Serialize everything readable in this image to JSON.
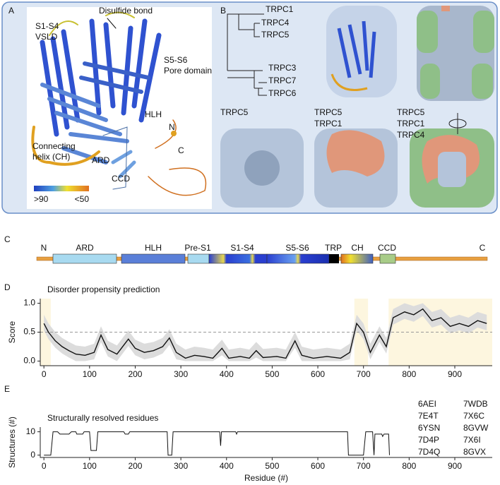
{
  "panels": {
    "A": {
      "label": "A",
      "disulfide": "Disulfide bond",
      "vsld": [
        "S1-S4",
        "VSLD"
      ],
      "pore": [
        "S5-S6",
        "Pore domain"
      ],
      "hlh": "HLH",
      "ch": [
        "Connecting",
        "helix (CH)"
      ],
      "n": "N",
      "c": "C",
      "ard": "ARD",
      "ccd": "CCD",
      "colorbar": [
        ">90",
        "<50"
      ]
    },
    "B": {
      "label": "B",
      "tree": [
        "TRPC1",
        "TRPC4",
        "TRPC5",
        "TRPC3",
        "TRPC7",
        "TRPC6"
      ],
      "surfaces": [
        [
          "TRPC5"
        ],
        [
          "TRPC5",
          "TRPC1"
        ],
        [
          "TRPC5",
          "TRPC1",
          "TRPC4"
        ]
      ]
    },
    "C": {
      "label": "C",
      "domains": [
        "N",
        "ARD",
        "HLH",
        "Pre-S1",
        "S1-S4",
        "S5-S6",
        "TRP",
        "CH",
        "CCD",
        "C"
      ]
    },
    "D": {
      "label": "D"
    },
    "E": {
      "label": "E"
    }
  },
  "chart_data": [
    {
      "type": "line",
      "title": "Disorder propensity prediction",
      "ylabel": "Score",
      "x": [
        0,
        10,
        25,
        40,
        55,
        70,
        90,
        110,
        125,
        140,
        160,
        185,
        200,
        220,
        240,
        260,
        275,
        290,
        310,
        330,
        350,
        370,
        390,
        405,
        430,
        450,
        465,
        480,
        510,
        530,
        550,
        565,
        590,
        620,
        650,
        670,
        685,
        700,
        715,
        735,
        750,
        765,
        790,
        810,
        830,
        850,
        870,
        890,
        910,
        930,
        950,
        970
      ],
      "series": [
        {
          "color": "#111111",
          "values": [
            0.65,
            0.5,
            0.35,
            0.25,
            0.18,
            0.12,
            0.1,
            0.15,
            0.45,
            0.2,
            0.12,
            0.38,
            0.22,
            0.15,
            0.18,
            0.25,
            0.4,
            0.15,
            0.05,
            0.1,
            0.08,
            0.05,
            0.22,
            0.05,
            0.08,
            0.05,
            0.18,
            0.06,
            0.08,
            0.05,
            0.35,
            0.1,
            0.05,
            0.08,
            0.05,
            0.15,
            0.65,
            0.5,
            0.15,
            0.45,
            0.25,
            0.75,
            0.85,
            0.8,
            0.9,
            0.7,
            0.75,
            0.6,
            0.65,
            0.6,
            0.7,
            0.65
          ]
        }
      ],
      "band_upper": [
        0.8,
        0.65,
        0.5,
        0.4,
        0.33,
        0.27,
        0.25,
        0.3,
        0.6,
        0.35,
        0.27,
        0.53,
        0.37,
        0.3,
        0.33,
        0.4,
        0.55,
        0.3,
        0.2,
        0.25,
        0.23,
        0.2,
        0.37,
        0.2,
        0.23,
        0.2,
        0.33,
        0.21,
        0.23,
        0.2,
        0.5,
        0.25,
        0.2,
        0.23,
        0.2,
        0.3,
        0.8,
        0.65,
        0.3,
        0.6,
        0.4,
        0.9,
        1.0,
        0.95,
        1.0,
        0.85,
        0.9,
        0.75,
        0.8,
        0.75,
        0.85,
        0.8
      ],
      "band_lower": [
        0.53,
        0.38,
        0.23,
        0.13,
        0.06,
        0,
        0,
        0.03,
        0.33,
        0.08,
        0,
        0.26,
        0.1,
        0.03,
        0.06,
        0.13,
        0.28,
        0.03,
        0,
        0,
        0,
        0,
        0.1,
        0,
        0,
        0,
        0.06,
        0,
        0,
        0,
        0.23,
        0,
        0,
        0,
        0,
        0.03,
        0.53,
        0.38,
        0.03,
        0.33,
        0.13,
        0.63,
        0.73,
        0.68,
        0.78,
        0.58,
        0.63,
        0.48,
        0.53,
        0.48,
        0.58,
        0.53
      ],
      "band_color": "#dcdcdc",
      "highlight_ranges": [
        [
          -8,
          15
        ],
        [
          680,
          710
        ],
        [
          755,
          982
        ]
      ],
      "highlight_color": "#fdf6df",
      "reference_line": 0.5,
      "xlim": [
        -8,
        982
      ],
      "ylim": [
        -0.08,
        1.08
      ],
      "xticks": [
        0,
        100,
        200,
        300,
        400,
        500,
        600,
        700,
        800,
        900
      ],
      "yticks": [
        {
          "value": 0,
          "label": "0.0"
        },
        {
          "value": 0.5,
          "label": "0.5"
        },
        {
          "value": 1,
          "label": "1.0"
        }
      ]
    },
    {
      "type": "line",
      "title": "Structurally resolved residues",
      "xlabel": "Residue (#)",
      "ylabel": "Structures (#)",
      "x": [
        0,
        15,
        20,
        30,
        35,
        55,
        60,
        70,
        72,
        85,
        88,
        100,
        103,
        115,
        118,
        175,
        178,
        185,
        188,
        270,
        272,
        280,
        283,
        385,
        387,
        389,
        420,
        422,
        424,
        665,
        667,
        700,
        705,
        720,
        723,
        725,
        740,
        742,
        745,
        755,
        757
      ],
      "series": [
        {
          "color": "#111111",
          "values": [
            0,
            0,
            10,
            10,
            9,
            9,
            10,
            10,
            9,
            9,
            10,
            10,
            2,
            2,
            10,
            10,
            9,
            9,
            10,
            10,
            0,
            0,
            10,
            10,
            4,
            10,
            10,
            9,
            10,
            10,
            0,
            0,
            10,
            10,
            0,
            9,
            9,
            8,
            9,
            9,
            0
          ]
        }
      ],
      "xlim": [
        -8,
        982
      ],
      "ylim": [
        -1,
        12
      ],
      "xticks": [
        0,
        100,
        200,
        300,
        400,
        500,
        600,
        700,
        800,
        900
      ],
      "yticks": [
        0,
        10
      ],
      "pdb_ids": [
        {
          "label": "6AEI",
          "color": "#111111"
        },
        {
          "label": "7E4T",
          "color": "#111111"
        },
        {
          "label": "6YSN",
          "color": "#e02020"
        },
        {
          "label": "7D4P",
          "color": "#e02020"
        },
        {
          "label": "7D4Q",
          "color": "#e02020"
        },
        {
          "label": "7WDB",
          "color": "#2a9a3a"
        },
        {
          "label": "7X6C",
          "color": "#111111"
        },
        {
          "label": "8GVW",
          "color": "#111111"
        },
        {
          "label": "7X6I",
          "color": "#a0703a"
        },
        {
          "label": "8GVX",
          "color": "#a0703a"
        }
      ]
    }
  ]
}
